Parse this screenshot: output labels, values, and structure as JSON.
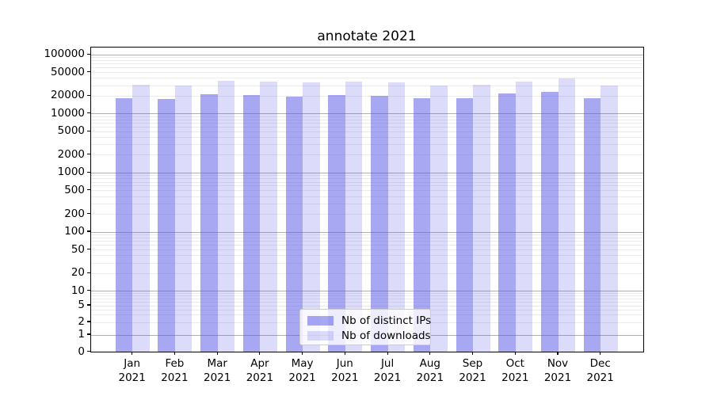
{
  "chart_data": {
    "type": "bar",
    "title": "annotate 2021",
    "x_axis": {
      "categories": [
        "Jan",
        "Feb",
        "Mar",
        "Apr",
        "May",
        "Jun",
        "Jul",
        "Aug",
        "Sep",
        "Oct",
        "Nov",
        "Dec"
      ],
      "year": "2021"
    },
    "series": [
      {
        "name": "Nb of distinct IPs",
        "color": "rgba(80,80,230,0.5)",
        "values": [
          17900,
          17350,
          20900,
          20300,
          19200,
          20300,
          19650,
          18300,
          18000,
          21700,
          23000,
          18000
        ]
      },
      {
        "name": "Nb of downloads",
        "color": "rgba(80,80,230,0.2)",
        "values": [
          30600,
          29600,
          36200,
          34400,
          33600,
          34400,
          33300,
          29500,
          30650,
          35000,
          39700,
          30000
        ]
      }
    ],
    "y_axis": {
      "scale": "symlog",
      "tick_values": [
        100000,
        50000,
        20000,
        10000,
        5000,
        2000,
        1000,
        500,
        200,
        100,
        50,
        20,
        10,
        5,
        2,
        1,
        0
      ],
      "range": [
        0,
        100000
      ]
    },
    "legend": {
      "position": "lower center",
      "entries": [
        "Nb of distinct IPs",
        "Nb of downloads"
      ]
    },
    "grid": {
      "major_color": "#b0b0b0",
      "minor_color": "#ebebeb"
    },
    "text_color": "#000000"
  }
}
